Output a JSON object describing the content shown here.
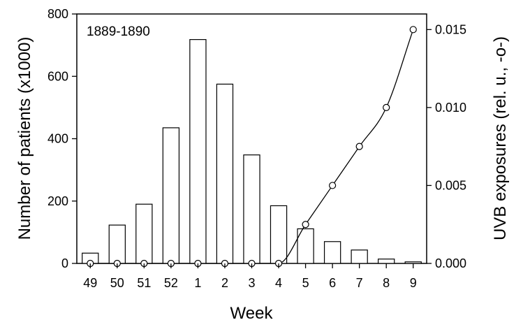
{
  "chart_data": {
    "type": "bar",
    "annotation": "1889-1890",
    "xlabel": "Week",
    "ylabel": "Number of patients (x1000)",
    "y2label": "UVB exposures (rel. u., -o-)",
    "categories": [
      "49",
      "50",
      "51",
      "52",
      "1",
      "2",
      "3",
      "4",
      "5",
      "6",
      "7",
      "8",
      "9"
    ],
    "ylim": [
      0,
      800
    ],
    "yticks": [
      "0",
      "200",
      "400",
      "600",
      "800"
    ],
    "y2lim": [
      0,
      0.016
    ],
    "y2ticks": [
      "0.000",
      "0.005",
      "0.010",
      "0.015"
    ],
    "series": [
      {
        "type": "bar",
        "axis": "left",
        "values": [
          33,
          123,
          190,
          435,
          718,
          575,
          348,
          185,
          111,
          70,
          43,
          14,
          5
        ],
        "color": "#ffffff",
        "edgecolor": "#000000"
      },
      {
        "type": "line",
        "axis": "right",
        "marker": "open-circle",
        "values": [
          0,
          0,
          0,
          0,
          0,
          0,
          0,
          0,
          0.0025,
          0.005,
          0.0075,
          0.01,
          0.015
        ],
        "color": "#000000"
      }
    ],
    "grid": false,
    "legend": "none"
  }
}
